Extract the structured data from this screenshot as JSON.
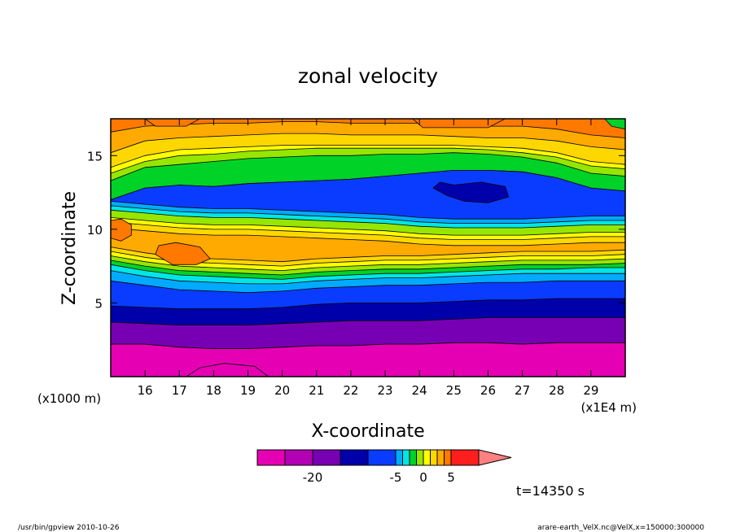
{
  "chart_data": {
    "type": "contour",
    "title": "zonal velocity",
    "xlabel": "X-coordinate",
    "ylabel": "Z-coordinate",
    "x_unit_label": "(x1E4 m)",
    "y_unit_label": "(x1000 m)",
    "xlim": [
      15.0,
      30.0
    ],
    "ylim": [
      0.0,
      17.5
    ],
    "x_ticks": [
      "16",
      "17",
      "18",
      "19",
      "20",
      "21",
      "22",
      "23",
      "24",
      "25",
      "26",
      "27",
      "28",
      "29"
    ],
    "y_ticks": [
      "5",
      "10",
      "15"
    ],
    "colorbar": {
      "levels": [
        -30,
        -25,
        -20,
        -15,
        -10,
        -5,
        -3,
        -2,
        -1,
        0,
        1,
        2,
        3,
        5,
        10,
        15
      ],
      "colors": [
        "#e600b4",
        "#b400b4",
        "#7800b4",
        "#0000aa",
        "#0a3cff",
        "#00aaff",
        "#00e6e6",
        "#00d228",
        "#96e600",
        "#ffff00",
        "#ffd700",
        "#ffaa00",
        "#ff7800",
        "#ff1e1e",
        "#ff8080"
      ],
      "tick_labels": [
        "-20",
        "-5",
        "0",
        "5"
      ],
      "tick_levels": [
        -20,
        -5,
        0,
        5
      ]
    },
    "bands": [
      {
        "color": "#e600b4",
        "level": -27
      },
      {
        "color": "#b400b4",
        "level": -22
      },
      {
        "color": "#7800b4",
        "level": -17
      },
      {
        "color": "#0000aa",
        "level": -12
      },
      {
        "color": "#0a3cff",
        "level": -7
      },
      {
        "color": "#00aaff",
        "level": -4
      },
      {
        "color": "#00e6e6",
        "level": -2.5
      },
      {
        "color": "#00d228",
        "level": -1.5
      },
      {
        "color": "#96e600",
        "level": -0.5
      },
      {
        "color": "#ffff00",
        "level": 0.5
      },
      {
        "color": "#ffd700",
        "level": 1.5
      },
      {
        "color": "#ffaa00",
        "level": 2.5
      },
      {
        "color": "#ff7800",
        "level": 4
      }
    ],
    "time_label": "t=14350 s"
  },
  "footer": {
    "left": "/usr/bin/gpview   2010-10-26",
    "right": "arare-earth_VelX.nc@VelX,x=150000:300000"
  }
}
